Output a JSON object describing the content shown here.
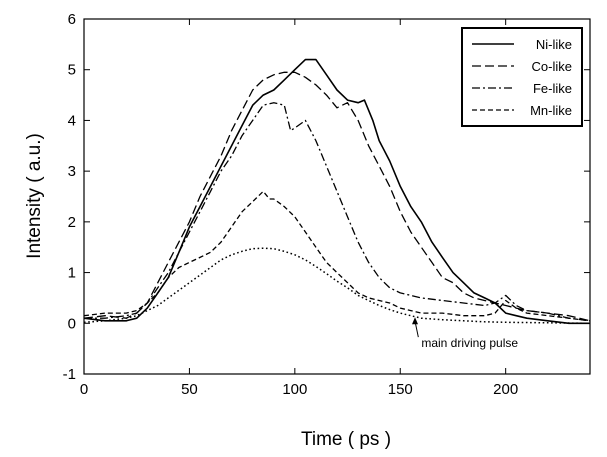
{
  "chart_data": {
    "type": "line",
    "title": "",
    "xlabel": "Time ( ps )",
    "ylabel": "Intensity ( a.u.)",
    "xlim": [
      0,
      240
    ],
    "ylim": [
      -1,
      6
    ],
    "xticks": [
      0,
      50,
      100,
      150,
      200
    ],
    "yticks": [
      -1,
      0,
      1,
      2,
      3,
      4,
      5,
      6
    ],
    "grid": false,
    "legend_position": "top-right",
    "series": [
      {
        "name": "Ni-like",
        "style": "solid",
        "points": [
          [
            0,
            0.1
          ],
          [
            10,
            0.05
          ],
          [
            20,
            0.05
          ],
          [
            25,
            0.1
          ],
          [
            30,
            0.3
          ],
          [
            35,
            0.6
          ],
          [
            40,
            0.9
          ],
          [
            45,
            1.4
          ],
          [
            50,
            1.9
          ],
          [
            55,
            2.3
          ],
          [
            60,
            2.7
          ],
          [
            65,
            3.1
          ],
          [
            70,
            3.5
          ],
          [
            75,
            3.9
          ],
          [
            80,
            4.3
          ],
          [
            85,
            4.5
          ],
          [
            90,
            4.6
          ],
          [
            95,
            4.8
          ],
          [
            100,
            5.0
          ],
          [
            105,
            5.2
          ],
          [
            110,
            5.2
          ],
          [
            115,
            4.9
          ],
          [
            120,
            4.6
          ],
          [
            125,
            4.4
          ],
          [
            130,
            4.35
          ],
          [
            133,
            4.4
          ],
          [
            137,
            4.0
          ],
          [
            140,
            3.6
          ],
          [
            145,
            3.2
          ],
          [
            150,
            2.7
          ],
          [
            155,
            2.3
          ],
          [
            160,
            2.0
          ],
          [
            165,
            1.6
          ],
          [
            170,
            1.3
          ],
          [
            175,
            1.0
          ],
          [
            180,
            0.8
          ],
          [
            185,
            0.6
          ],
          [
            190,
            0.5
          ],
          [
            195,
            0.4
          ],
          [
            200,
            0.2
          ],
          [
            205,
            0.15
          ],
          [
            210,
            0.1
          ],
          [
            220,
            0.05
          ],
          [
            230,
            0.0
          ],
          [
            240,
            0.0
          ]
        ]
      },
      {
        "name": "Co-like",
        "style": "dashed",
        "points": [
          [
            0,
            0.1
          ],
          [
            10,
            0.15
          ],
          [
            20,
            0.1
          ],
          [
            25,
            0.2
          ],
          [
            30,
            0.4
          ],
          [
            35,
            0.8
          ],
          [
            40,
            1.2
          ],
          [
            45,
            1.6
          ],
          [
            50,
            2.0
          ],
          [
            55,
            2.5
          ],
          [
            60,
            2.9
          ],
          [
            65,
            3.3
          ],
          [
            70,
            3.8
          ],
          [
            75,
            4.2
          ],
          [
            80,
            4.6
          ],
          [
            85,
            4.8
          ],
          [
            90,
            4.9
          ],
          [
            95,
            4.95
          ],
          [
            100,
            4.95
          ],
          [
            105,
            4.85
          ],
          [
            110,
            4.7
          ],
          [
            115,
            4.5
          ],
          [
            120,
            4.25
          ],
          [
            125,
            4.35
          ],
          [
            130,
            4.0
          ],
          [
            135,
            3.5
          ],
          [
            140,
            3.1
          ],
          [
            145,
            2.7
          ],
          [
            150,
            2.2
          ],
          [
            155,
            1.8
          ],
          [
            160,
            1.5
          ],
          [
            165,
            1.2
          ],
          [
            170,
            0.9
          ],
          [
            175,
            0.8
          ],
          [
            180,
            0.6
          ],
          [
            185,
            0.5
          ],
          [
            190,
            0.45
          ],
          [
            195,
            0.4
          ],
          [
            200,
            0.35
          ],
          [
            205,
            0.3
          ],
          [
            210,
            0.25
          ],
          [
            220,
            0.2
          ],
          [
            230,
            0.15
          ],
          [
            240,
            0.05
          ]
        ]
      },
      {
        "name": "Fe-like",
        "style": "dash-dot",
        "points": [
          [
            0,
            0.1
          ],
          [
            10,
            0.1
          ],
          [
            20,
            0.15
          ],
          [
            25,
            0.2
          ],
          [
            30,
            0.4
          ],
          [
            35,
            0.7
          ],
          [
            40,
            1.0
          ],
          [
            45,
            1.4
          ],
          [
            50,
            1.8
          ],
          [
            55,
            2.2
          ],
          [
            60,
            2.6
          ],
          [
            65,
            3.0
          ],
          [
            70,
            3.3
          ],
          [
            75,
            3.7
          ],
          [
            80,
            4.0
          ],
          [
            85,
            4.3
          ],
          [
            90,
            4.35
          ],
          [
            95,
            4.3
          ],
          [
            98,
            3.8
          ],
          [
            100,
            3.85
          ],
          [
            105,
            4.0
          ],
          [
            110,
            3.6
          ],
          [
            115,
            3.1
          ],
          [
            120,
            2.6
          ],
          [
            125,
            2.1
          ],
          [
            130,
            1.6
          ],
          [
            135,
            1.2
          ],
          [
            140,
            0.9
          ],
          [
            145,
            0.7
          ],
          [
            150,
            0.6
          ],
          [
            155,
            0.55
          ],
          [
            160,
            0.5
          ],
          [
            170,
            0.45
          ],
          [
            180,
            0.4
          ],
          [
            190,
            0.35
          ],
          [
            195,
            0.4
          ],
          [
            200,
            0.55
          ],
          [
            205,
            0.35
          ],
          [
            210,
            0.25
          ],
          [
            220,
            0.2
          ],
          [
            230,
            0.1
          ],
          [
            240,
            0.05
          ]
        ]
      },
      {
        "name": "Mn-like",
        "style": "short-dashed",
        "points": [
          [
            0,
            0.15
          ],
          [
            10,
            0.2
          ],
          [
            20,
            0.2
          ],
          [
            25,
            0.25
          ],
          [
            30,
            0.4
          ],
          [
            35,
            0.6
          ],
          [
            40,
            0.9
          ],
          [
            45,
            1.1
          ],
          [
            50,
            1.2
          ],
          [
            55,
            1.3
          ],
          [
            60,
            1.4
          ],
          [
            65,
            1.6
          ],
          [
            70,
            1.9
          ],
          [
            75,
            2.2
          ],
          [
            80,
            2.4
          ],
          [
            85,
            2.6
          ],
          [
            88,
            2.45
          ],
          [
            90,
            2.45
          ],
          [
            95,
            2.3
          ],
          [
            100,
            2.1
          ],
          [
            105,
            1.8
          ],
          [
            110,
            1.5
          ],
          [
            115,
            1.2
          ],
          [
            120,
            1.0
          ],
          [
            125,
            0.8
          ],
          [
            130,
            0.6
          ],
          [
            135,
            0.5
          ],
          [
            140,
            0.45
          ],
          [
            145,
            0.4
          ],
          [
            150,
            0.3
          ],
          [
            155,
            0.25
          ],
          [
            160,
            0.2
          ],
          [
            170,
            0.2
          ],
          [
            180,
            0.15
          ],
          [
            190,
            0.15
          ],
          [
            195,
            0.2
          ],
          [
            200,
            0.45
          ],
          [
            205,
            0.3
          ],
          [
            210,
            0.2
          ],
          [
            220,
            0.15
          ],
          [
            230,
            0.1
          ],
          [
            240,
            0.05
          ]
        ]
      },
      {
        "name": "",
        "style": "dotted",
        "points": [
          [
            0,
            0.02
          ],
          [
            10,
            0.05
          ],
          [
            20,
            0.1
          ],
          [
            25,
            0.15
          ],
          [
            30,
            0.25
          ],
          [
            35,
            0.35
          ],
          [
            40,
            0.5
          ],
          [
            45,
            0.65
          ],
          [
            50,
            0.8
          ],
          [
            55,
            0.95
          ],
          [
            60,
            1.1
          ],
          [
            65,
            1.25
          ],
          [
            70,
            1.35
          ],
          [
            75,
            1.42
          ],
          [
            80,
            1.47
          ],
          [
            85,
            1.48
          ],
          [
            90,
            1.47
          ],
          [
            95,
            1.42
          ],
          [
            100,
            1.35
          ],
          [
            105,
            1.25
          ],
          [
            110,
            1.12
          ],
          [
            115,
            0.98
          ],
          [
            120,
            0.83
          ],
          [
            125,
            0.7
          ],
          [
            130,
            0.55
          ],
          [
            135,
            0.45
          ],
          [
            140,
            0.35
          ],
          [
            145,
            0.27
          ],
          [
            150,
            0.2
          ],
          [
            155,
            0.15
          ],
          [
            160,
            0.1
          ],
          [
            170,
            0.07
          ],
          [
            180,
            0.05
          ],
          [
            190,
            0.03
          ],
          [
            200,
            0.02
          ],
          [
            220,
            0.01
          ],
          [
            240,
            0.0
          ]
        ]
      }
    ],
    "annotations": [
      {
        "text": "main driving pulse",
        "x": 160,
        "y": -0.45,
        "arrow_to": [
          157,
          0.12
        ]
      }
    ]
  }
}
